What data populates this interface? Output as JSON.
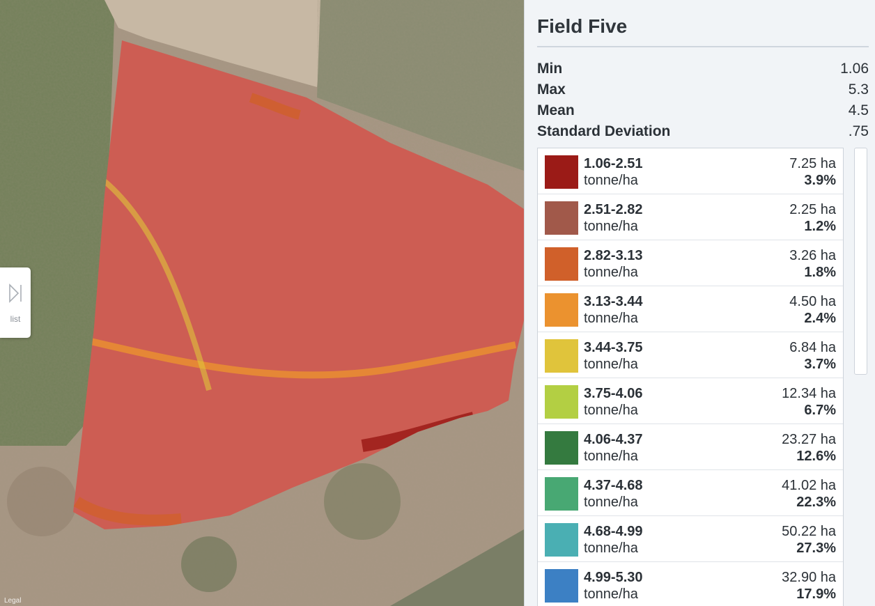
{
  "map": {
    "list_label": "list",
    "legal_label": "Legal",
    "toggle_icon": "sidebar-expand-icon"
  },
  "panel": {
    "title": "Field Five",
    "stats": [
      {
        "label": "Min",
        "value": "1.06"
      },
      {
        "label": "Max",
        "value": "5.3"
      },
      {
        "label": "Mean",
        "value": "4.5"
      },
      {
        "label": "Standard Deviation",
        "value": ".75"
      }
    ],
    "legend": [
      {
        "range": "1.06-2.51",
        "unit": "tonne/ha",
        "area": "7.25 ha",
        "percent": "3.9%",
        "color": "#9b1b17"
      },
      {
        "range": "2.51-2.82",
        "unit": "tonne/ha",
        "area": "2.25 ha",
        "percent": "1.2%",
        "color": "#a1594a"
      },
      {
        "range": "2.82-3.13",
        "unit": "tonne/ha",
        "area": "3.26 ha",
        "percent": "1.8%",
        "color": "#d0602a"
      },
      {
        "range": "3.13-3.44",
        "unit": "tonne/ha",
        "area": "4.50 ha",
        "percent": "2.4%",
        "color": "#eb922f"
      },
      {
        "range": "3.44-3.75",
        "unit": "tonne/ha",
        "area": "6.84 ha",
        "percent": "3.7%",
        "color": "#e0c43b"
      },
      {
        "range": "3.75-4.06",
        "unit": "tonne/ha",
        "area": "12.34 ha",
        "percent": "6.7%",
        "color": "#b3cf43"
      },
      {
        "range": "4.06-4.37",
        "unit": "tonne/ha",
        "area": "23.27 ha",
        "percent": "12.6%",
        "color": "#347a3f"
      },
      {
        "range": "4.37-4.68",
        "unit": "tonne/ha",
        "area": "41.02 ha",
        "percent": "22.3%",
        "color": "#48a873"
      },
      {
        "range": "4.68-4.99",
        "unit": "tonne/ha",
        "area": "50.22 ha",
        "percent": "27.3%",
        "color": "#4aafb3"
      },
      {
        "range": "4.99-5.30",
        "unit": "tonne/ha",
        "area": "32.90 ha",
        "percent": "17.9%",
        "color": "#3c80c4"
      }
    ]
  }
}
